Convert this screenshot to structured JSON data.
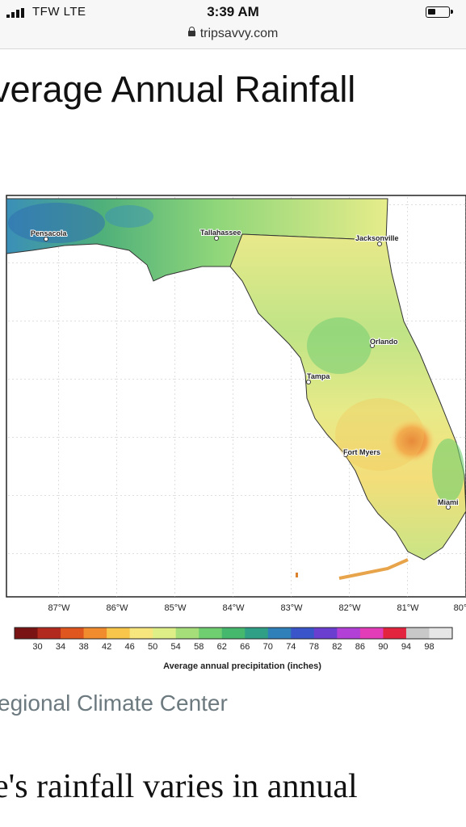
{
  "status_bar": {
    "carrier": "TFW  LTE",
    "time": "3:39 AM"
  },
  "browser": {
    "url": "tripsavvy.com"
  },
  "article": {
    "title": "verage Annual Rainfall",
    "caption": "egional Climate Center",
    "body_snippet": "e's rainfall varies in annual"
  },
  "map": {
    "cities": [
      "Pensacola",
      "Tallahassee",
      "Jacksonville",
      "Orlando",
      "Tampa",
      "Fort Myers",
      "Miami"
    ],
    "longitude_labels": [
      "87°W",
      "86°W",
      "85°W",
      "84°W",
      "83°W",
      "82°W",
      "81°W",
      "80°"
    ],
    "legend_values": [
      "30",
      "34",
      "38",
      "42",
      "46",
      "50",
      "54",
      "58",
      "62",
      "66",
      "70",
      "74",
      "78",
      "82",
      "86",
      "90",
      "94",
      "98"
    ],
    "legend_colors": [
      "#7a1414",
      "#b22a1e",
      "#e0561f",
      "#f08c2e",
      "#f7c64a",
      "#f7e57e",
      "#dfef88",
      "#a6de7a",
      "#6fcf70",
      "#45b86e",
      "#2f9f86",
      "#2f7fb8",
      "#3a55c9",
      "#6a3fd0",
      "#b23fd6",
      "#e23cb8",
      "#e3243f",
      "#c8c8c8",
      "#e6e6e6"
    ],
    "legend_title": "Average annual precipitation (inches)"
  }
}
